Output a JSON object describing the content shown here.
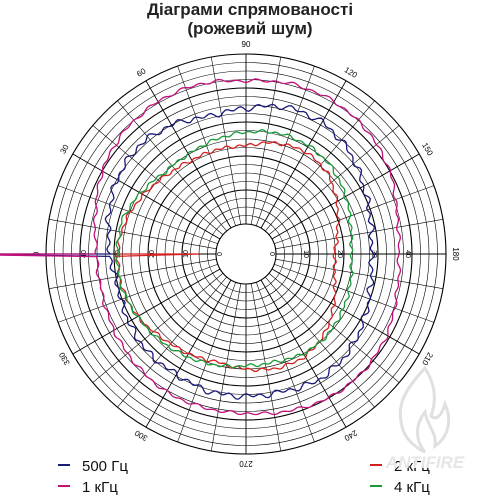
{
  "title_line1": "Діаграми спрямованості",
  "title_line2": "(рожевий шум)",
  "watermark_text": "ANTIFIRE",
  "colors": {
    "500hz": "#1a1a7a",
    "1khz": "#c0107a",
    "2khz": "#d42020",
    "4khz": "#1a9a3a",
    "grid": "#000000"
  },
  "chart_data": {
    "type": "polar",
    "title": "Діаграми спрямованості (рожевий шум)",
    "angle_labels": [
      "0",
      "30",
      "60",
      "90",
      "120",
      "150",
      "180",
      "210",
      "240",
      "270",
      "300",
      "330"
    ],
    "radial_labels_left": [
      "40",
      "30",
      "20",
      "10",
      "0"
    ],
    "radial_labels_right": [
      "0",
      "10",
      "20",
      "30",
      "40"
    ],
    "radial_range": [
      0,
      50
    ],
    "grid": true,
    "legend_position": "bottom",
    "series": [
      {
        "name": "500 Гц",
        "color": "#1a1a7a",
        "angles": [
          0,
          15,
          30,
          45,
          60,
          75,
          90,
          105,
          120,
          135,
          150,
          165,
          180,
          195,
          210,
          225,
          240,
          255,
          270,
          285,
          300,
          315,
          330,
          345
        ],
        "values": [
          31,
          33,
          35,
          36,
          35,
          33,
          34,
          36,
          36,
          34,
          31,
          29,
          28,
          29,
          31,
          33,
          34,
          33,
          33,
          33,
          32,
          32,
          31,
          30
        ]
      },
      {
        "name": "1 кГц",
        "color": "#c0107a",
        "angles": [
          0,
          15,
          30,
          45,
          60,
          75,
          90,
          105,
          120,
          135,
          150,
          165,
          180,
          195,
          210,
          225,
          240,
          255,
          270,
          285,
          300,
          315,
          330,
          345
        ],
        "values": [
          35,
          37,
          40,
          42,
          43,
          43,
          42,
          43,
          43,
          42,
          40,
          37,
          36,
          37,
          39,
          40,
          40,
          39,
          38,
          38,
          38,
          37,
          36,
          35
        ]
      },
      {
        "name": "2 кГц",
        "color": "#d42020",
        "angles": [
          0,
          15,
          30,
          45,
          60,
          75,
          90,
          105,
          120,
          135,
          150,
          165,
          180,
          195,
          210,
          225,
          240,
          255,
          270,
          285,
          300,
          315,
          330,
          345
        ],
        "values": [
          29,
          28,
          26,
          24,
          23,
          23,
          23,
          25,
          26,
          25,
          22,
          19,
          17,
          18,
          21,
          24,
          26,
          26,
          25,
          24,
          25,
          26,
          28,
          29
        ]
      },
      {
        "name": "4 кГц",
        "color": "#1a9a3a",
        "angles": [
          0,
          15,
          30,
          45,
          60,
          75,
          90,
          105,
          120,
          135,
          150,
          165,
          180,
          195,
          210,
          225,
          240,
          255,
          270,
          285,
          300,
          315,
          330,
          345
        ],
        "values": [
          29,
          29,
          27,
          25,
          25,
          26,
          27,
          28,
          28,
          27,
          25,
          23,
          22,
          23,
          24,
          25,
          25,
          24,
          24,
          25,
          26,
          27,
          28,
          29
        ]
      }
    ]
  }
}
